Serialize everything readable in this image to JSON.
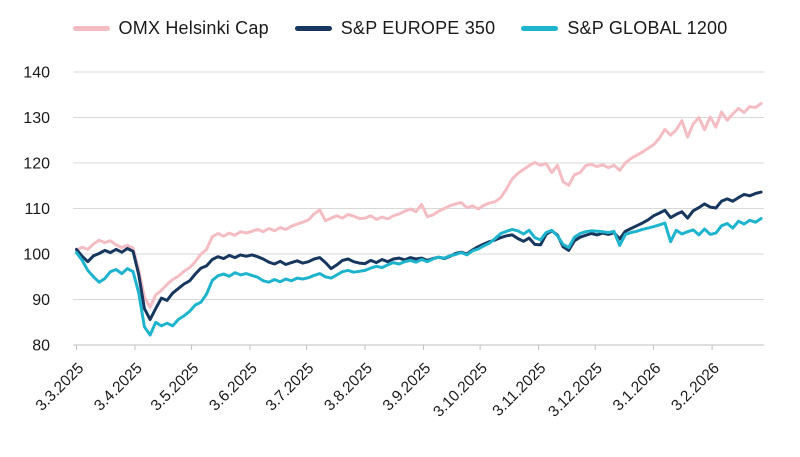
{
  "legend": [
    {
      "label": "OMX Helsinki Cap",
      "color": "#F3BDC3"
    },
    {
      "label": "S&P EUROPE 350",
      "color": "#17375E"
    },
    {
      "label": "S&P GLOBAL 1200",
      "color": "#1FB4CE"
    }
  ],
  "colors": {
    "background": "#FFFFFF",
    "grid": "#D9D9D9",
    "axis": "#BFBFBF",
    "text": "#1A1A1A"
  },
  "chart_data": {
    "type": "line",
    "title": "",
    "xlabel": "",
    "ylabel": "",
    "grid": "horizontal",
    "legend_position": "top",
    "y_axis": {
      "min": 80,
      "max": 140,
      "tick_step": 10,
      "tick_labels": [
        "80",
        "90",
        "100",
        "110",
        "120",
        "130",
        "140"
      ]
    },
    "x_axis": {
      "tick_labels": [
        "3.3.2025",
        "3.4.2025",
        "3.5.2025",
        "3.6.2025",
        "3.7.2025",
        "3.8.2025",
        "3.9.2025",
        "3.10.2025",
        "3.11.2025",
        "3.12.2025",
        "3.1.2026",
        "3.2.2026"
      ],
      "tick_day_offsets": [
        0,
        31,
        61,
        92,
        122,
        153,
        184,
        214,
        245,
        275,
        306,
        337
      ],
      "label_rotation_deg": -45
    },
    "sampling": {
      "start_day": 0,
      "step_days": 3,
      "points": 122,
      "end_day": 363
    },
    "series": [
      {
        "name": "OMX Helsinki Cap",
        "color": "#F3BDC3",
        "values": [
          100.8,
          101.5,
          101.0,
          102.2,
          103.0,
          102.5,
          102.9,
          102.0,
          101.4,
          101.9,
          101.3,
          96.5,
          90.5,
          88.3,
          91.0,
          92.0,
          93.3,
          94.4,
          95.1,
          96.2,
          97.0,
          98.3,
          100.0,
          101.0,
          103.8,
          104.5,
          103.9,
          104.6,
          104.1,
          104.9,
          104.6,
          105.0,
          105.4,
          104.9,
          105.6,
          105.1,
          105.8,
          105.4,
          106.1,
          106.6,
          107.0,
          107.5,
          108.8,
          109.7,
          107.3,
          107.9,
          108.4,
          107.9,
          108.7,
          108.3,
          107.8,
          107.9,
          108.4,
          107.6,
          108.1,
          107.7,
          108.4,
          108.8,
          109.4,
          109.9,
          109.3,
          110.9,
          108.2,
          108.6,
          109.4,
          110.0,
          110.6,
          111.0,
          111.3,
          110.2,
          110.6,
          109.9,
          110.7,
          111.2,
          111.5,
          112.4,
          114.3,
          116.5,
          117.7,
          118.6,
          119.4,
          120.1,
          119.5,
          119.9,
          117.9,
          119.5,
          115.9,
          115.1,
          117.4,
          117.9,
          119.4,
          119.7,
          119.2,
          119.6,
          119.0,
          119.5,
          118.4,
          120.0,
          121.0,
          121.7,
          122.4,
          123.2,
          124.0,
          125.4,
          127.4,
          126.1,
          127.3,
          129.3,
          125.7,
          128.6,
          130.0,
          127.3,
          130.1,
          127.9,
          131.2,
          129.4,
          130.8,
          132.0,
          131.1,
          132.4,
          132.2,
          133.1
        ]
      },
      {
        "name": "S&P EUROPE 350",
        "color": "#17375E",
        "values": [
          101.0,
          99.5,
          98.3,
          99.6,
          100.1,
          100.8,
          100.3,
          101.0,
          100.4,
          101.2,
          100.6,
          95.5,
          88.0,
          85.6,
          88.0,
          90.3,
          89.8,
          91.4,
          92.4,
          93.4,
          94.1,
          95.6,
          96.9,
          97.4,
          98.8,
          99.4,
          99.0,
          99.7,
          99.2,
          99.8,
          99.5,
          99.8,
          99.4,
          98.9,
          98.2,
          97.8,
          98.4,
          97.7,
          98.1,
          98.5,
          98.0,
          98.3,
          98.9,
          99.2,
          98.1,
          96.8,
          97.6,
          98.6,
          98.9,
          98.3,
          98.0,
          97.9,
          98.6,
          98.1,
          98.8,
          98.3,
          98.9,
          99.1,
          98.7,
          99.2,
          98.9,
          99.1,
          98.6,
          99.0,
          99.3,
          99.0,
          99.5,
          100.1,
          100.4,
          100.0,
          100.9,
          101.6,
          102.2,
          102.7,
          103.1,
          103.6,
          104.0,
          104.2,
          103.4,
          102.8,
          103.5,
          102.1,
          102.0,
          104.3,
          105.1,
          104.2,
          101.6,
          100.8,
          102.9,
          103.7,
          104.1,
          104.5,
          104.2,
          104.6,
          104.3,
          104.7,
          103.3,
          105.0,
          105.6,
          106.2,
          106.8,
          107.5,
          108.4,
          109.0,
          109.6,
          108.0,
          108.7,
          109.3,
          107.9,
          109.5,
          110.2,
          111.0,
          110.3,
          110.1,
          111.6,
          112.1,
          111.6,
          112.4,
          113.1,
          112.8,
          113.3,
          113.6
        ]
      },
      {
        "name": "S&P GLOBAL 1200",
        "color": "#1FB4CE",
        "values": [
          100.3,
          98.6,
          96.4,
          95.0,
          93.8,
          94.6,
          96.1,
          96.6,
          95.7,
          96.8,
          96.1,
          91.5,
          84.0,
          82.2,
          85.0,
          84.2,
          84.8,
          84.2,
          85.6,
          86.4,
          87.4,
          88.8,
          89.4,
          91.2,
          94.2,
          95.2,
          95.6,
          95.1,
          95.9,
          95.4,
          95.7,
          95.3,
          94.9,
          94.1,
          93.8,
          94.4,
          93.9,
          94.5,
          94.1,
          94.7,
          94.5,
          94.8,
          95.3,
          95.7,
          95.0,
          94.7,
          95.4,
          96.1,
          96.4,
          96.0,
          96.2,
          96.4,
          96.9,
          97.3,
          97.0,
          97.6,
          98.1,
          97.8,
          98.3,
          98.6,
          98.2,
          98.8,
          98.3,
          98.9,
          99.3,
          99.1,
          99.6,
          99.9,
          100.3,
          99.8,
          100.7,
          101.1,
          101.8,
          102.4,
          103.4,
          104.5,
          105.0,
          105.4,
          105.1,
          104.4,
          105.2,
          103.6,
          103.1,
          104.7,
          105.2,
          104.0,
          102.1,
          101.4,
          103.7,
          104.5,
          104.9,
          105.1,
          105.0,
          104.9,
          104.7,
          105.0,
          101.9,
          104.3,
          104.7,
          105.0,
          105.4,
          105.7,
          106.0,
          106.4,
          106.8,
          102.7,
          105.2,
          104.4,
          104.9,
          105.3,
          104.2,
          105.5,
          104.3,
          104.6,
          106.2,
          106.7,
          105.7,
          107.2,
          106.6,
          107.4,
          107.0,
          107.8
        ]
      }
    ]
  }
}
